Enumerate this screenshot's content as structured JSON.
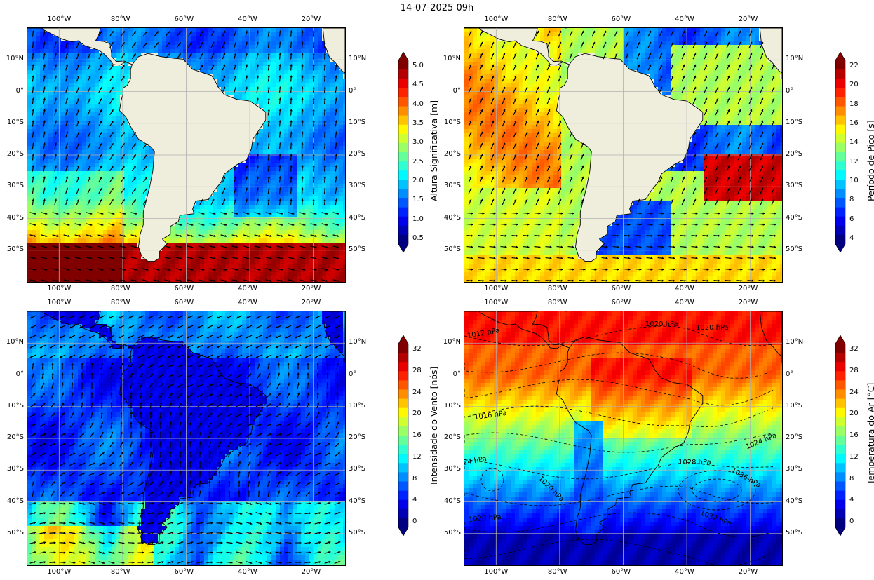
{
  "title": "14-07-2025 09h",
  "lon_ticks": [
    "100°W",
    "80°W",
    "60°W",
    "40°W",
    "20°W"
  ],
  "lat_ticks": [
    "10°N",
    "0°",
    "10°S",
    "20°S",
    "30°S",
    "40°S",
    "50°S"
  ],
  "panels": [
    {
      "id": "hs",
      "colorbar_label": "Altura Significativa [m]",
      "colorbar_ticks": [
        "5.0",
        "4.5",
        "4.0",
        "3.5",
        "3.0",
        "2.5",
        "2.0",
        "1.5",
        "1.0",
        "0.5"
      ],
      "colormap": "jet"
    },
    {
      "id": "tp",
      "colorbar_label": "Período de Pico [s]",
      "colorbar_ticks": [
        "22",
        "20",
        "18",
        "16",
        "14",
        "12",
        "10",
        "8",
        "6",
        "4"
      ],
      "colormap": "jet"
    },
    {
      "id": "wind",
      "colorbar_label": "Intensidade do Vento [nós]",
      "colorbar_ticks": [
        "32",
        "28",
        "24",
        "20",
        "16",
        "12",
        "8",
        "4",
        "0"
      ],
      "colormap": "jet"
    },
    {
      "id": "temp",
      "colorbar_label": "Temperatura do Ar [°C]",
      "colorbar_ticks": [
        "32",
        "28",
        "24",
        "20",
        "16",
        "12",
        "8",
        "4",
        "0"
      ],
      "colormap": "jet",
      "isobar_labels": [
        "1012 hPa",
        "1020 hPa",
        "1016 hPa",
        "1020 hPa",
        "1024 hPa",
        "24 hPa",
        "1028 hPa",
        "1036 hPa",
        "1020 hPa",
        "1020 hPa",
        "1032 hPa"
      ]
    }
  ],
  "colors": {
    "land": "#efeedd",
    "grid": "#b0b0b0"
  }
}
